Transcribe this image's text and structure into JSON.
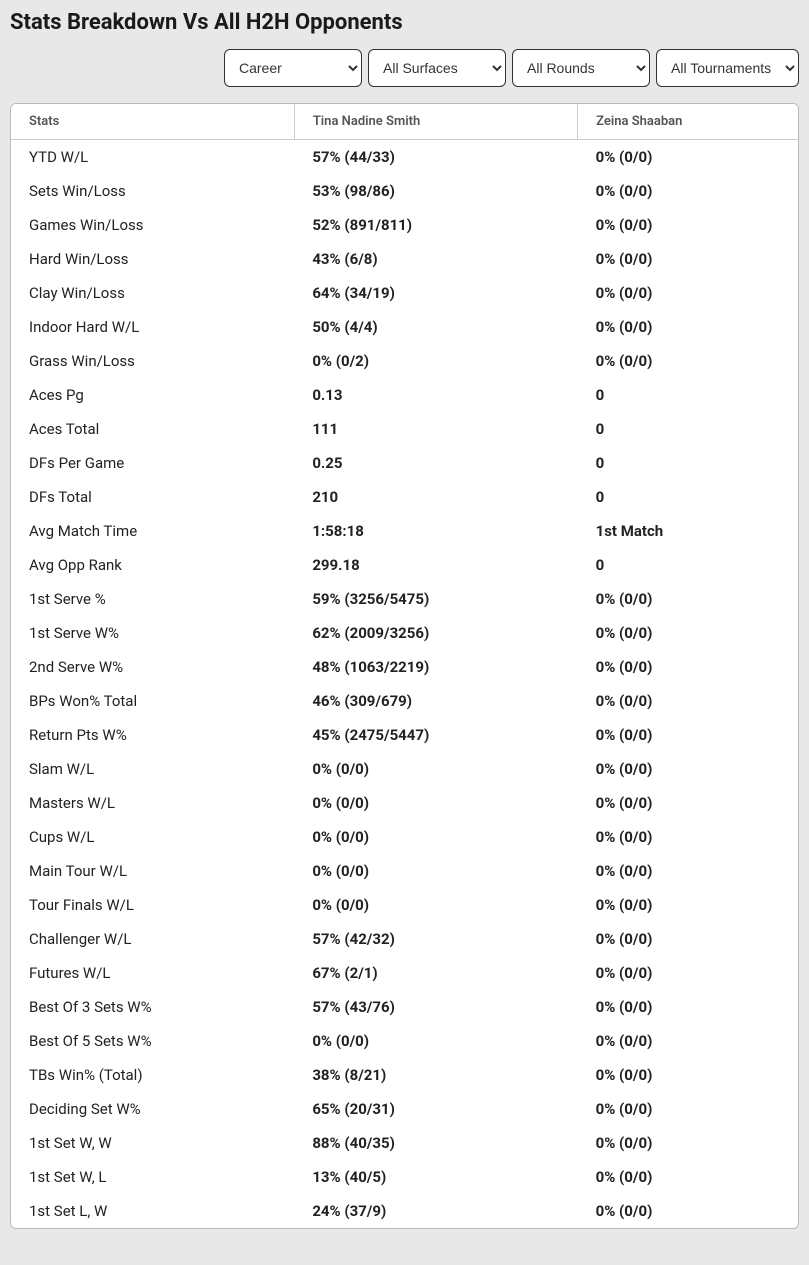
{
  "title": "Stats Breakdown Vs All H2H Opponents",
  "filters": {
    "period": {
      "selected": "Career",
      "options": [
        "Career"
      ]
    },
    "surface": {
      "selected": "All Surfaces",
      "options": [
        "All Surfaces"
      ]
    },
    "round": {
      "selected": "All Rounds",
      "options": [
        "All Rounds"
      ]
    },
    "tournament": {
      "selected": "All Tournaments",
      "options": [
        "All Tournaments"
      ]
    }
  },
  "table": {
    "headers": {
      "stats": "Stats",
      "player1": "Tina Nadine Smith",
      "player2": "Zeina Shaaban"
    },
    "rows": [
      {
        "stat": "YTD W/L",
        "p1": "57% (44/33)",
        "p2": "0% (0/0)"
      },
      {
        "stat": "Sets Win/Loss",
        "p1": "53% (98/86)",
        "p2": "0% (0/0)"
      },
      {
        "stat": "Games Win/Loss",
        "p1": "52% (891/811)",
        "p2": "0% (0/0)"
      },
      {
        "stat": "Hard Win/Loss",
        "p1": "43% (6/8)",
        "p2": "0% (0/0)"
      },
      {
        "stat": "Clay Win/Loss",
        "p1": "64% (34/19)",
        "p2": "0% (0/0)"
      },
      {
        "stat": "Indoor Hard W/L",
        "p1": "50% (4/4)",
        "p2": "0% (0/0)"
      },
      {
        "stat": "Grass Win/Loss",
        "p1": "0% (0/2)",
        "p2": "0% (0/0)"
      },
      {
        "stat": "Aces Pg",
        "p1": "0.13",
        "p2": "0"
      },
      {
        "stat": "Aces Total",
        "p1": "111",
        "p2": "0"
      },
      {
        "stat": "DFs Per Game",
        "p1": "0.25",
        "p2": "0"
      },
      {
        "stat": "DFs Total",
        "p1": "210",
        "p2": "0"
      },
      {
        "stat": "Avg Match Time",
        "p1": "1:58:18",
        "p2": "1st Match"
      },
      {
        "stat": "Avg Opp Rank",
        "p1": "299.18",
        "p2": "0"
      },
      {
        "stat": "1st Serve %",
        "p1": "59% (3256/5475)",
        "p2": "0% (0/0)"
      },
      {
        "stat": "1st Serve W%",
        "p1": "62% (2009/3256)",
        "p2": "0% (0/0)"
      },
      {
        "stat": "2nd Serve W%",
        "p1": "48% (1063/2219)",
        "p2": "0% (0/0)"
      },
      {
        "stat": "BPs Won% Total",
        "p1": "46% (309/679)",
        "p2": "0% (0/0)"
      },
      {
        "stat": "Return Pts W%",
        "p1": "45% (2475/5447)",
        "p2": "0% (0/0)"
      },
      {
        "stat": "Slam W/L",
        "p1": "0% (0/0)",
        "p2": "0% (0/0)"
      },
      {
        "stat": "Masters W/L",
        "p1": "0% (0/0)",
        "p2": "0% (0/0)"
      },
      {
        "stat": "Cups W/L",
        "p1": "0% (0/0)",
        "p2": "0% (0/0)"
      },
      {
        "stat": "Main Tour W/L",
        "p1": "0% (0/0)",
        "p2": "0% (0/0)"
      },
      {
        "stat": "Tour Finals W/L",
        "p1": "0% (0/0)",
        "p2": "0% (0/0)"
      },
      {
        "stat": "Challenger W/L",
        "p1": "57% (42/32)",
        "p2": "0% (0/0)"
      },
      {
        "stat": "Futures W/L",
        "p1": "67% (2/1)",
        "p2": "0% (0/0)"
      },
      {
        "stat": "Best Of 3 Sets W%",
        "p1": "57% (43/76)",
        "p2": "0% (0/0)"
      },
      {
        "stat": "Best Of 5 Sets W%",
        "p1": "0% (0/0)",
        "p2": "0% (0/0)"
      },
      {
        "stat": "TBs Win% (Total)",
        "p1": "38% (8/21)",
        "p2": "0% (0/0)"
      },
      {
        "stat": "Deciding Set W%",
        "p1": "65% (20/31)",
        "p2": "0% (0/0)"
      },
      {
        "stat": "1st Set W, W",
        "p1": "88% (40/35)",
        "p2": "0% (0/0)"
      },
      {
        "stat": "1st Set W, L",
        "p1": "13% (40/5)",
        "p2": "0% (0/0)"
      },
      {
        "stat": "1st Set L, W",
        "p1": "24% (37/9)",
        "p2": "0% (0/0)"
      }
    ]
  }
}
